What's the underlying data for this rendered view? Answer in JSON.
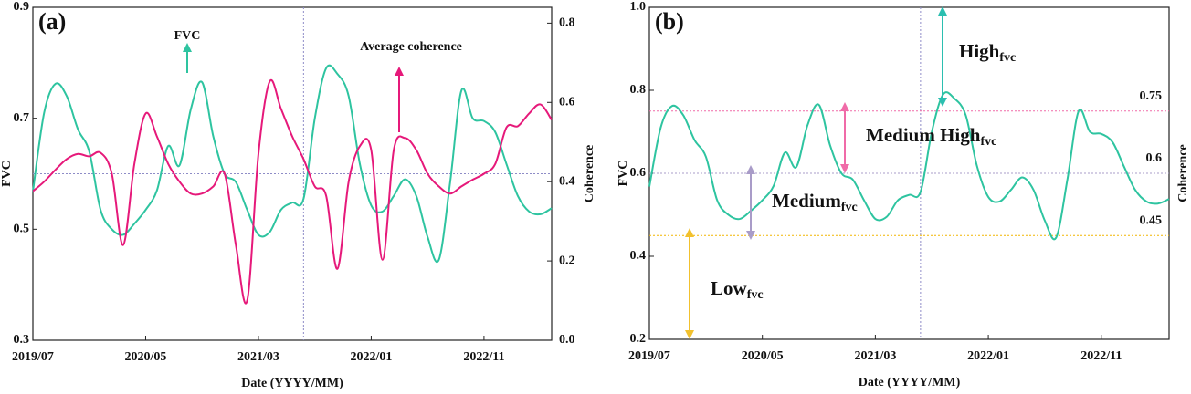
{
  "chart_data": [
    {
      "type": "line",
      "panel_label": "(a)",
      "x": [
        "2019/07",
        "2019/08",
        "2019/09",
        "2019/10",
        "2019/11",
        "2019/12",
        "2020/01",
        "2020/02",
        "2020/03",
        "2020/04",
        "2020/05",
        "2020/06",
        "2020/07",
        "2020/08",
        "2020/09",
        "2020/10",
        "2020/11",
        "2020/12",
        "2021/01",
        "2021/02",
        "2021/03",
        "2021/04",
        "2021/05",
        "2021/06",
        "2021/07",
        "2021/08",
        "2021/09",
        "2021/10",
        "2021/11",
        "2021/12",
        "2022/01",
        "2022/02",
        "2022/03",
        "2022/04",
        "2022/05",
        "2022/06",
        "2022/07",
        "2022/08",
        "2022/09",
        "2022/10",
        "2022/11",
        "2022/12",
        "2023/01",
        "2023/02",
        "2023/03",
        "2023/04",
        "2023/05"
      ],
      "xlim": [
        "2019/07",
        "2023/05"
      ],
      "xticks": [
        "2019/07",
        "2020/05",
        "2021/03",
        "2022/01",
        "2022/11"
      ],
      "xlabel": "Date (YYYY/MM)",
      "ylabel": "FVC",
      "y2label": "Coherence",
      "ylim": [
        0.3,
        0.9
      ],
      "yticks": [
        0.3,
        0.5,
        0.7,
        0.9
      ],
      "y2lim": [
        0,
        0.84
      ],
      "y2ticks": [
        {
          "value": 0,
          "label": "0.0"
        },
        0.2,
        0.4,
        0.6,
        0.8
      ],
      "vline": "2021/07",
      "hline": 0.6,
      "hline_color": "#8e8cc7",
      "series": [
        {
          "name": "FVC",
          "color": "#2ec4a0",
          "values": [
            0.568,
            0.71,
            0.762,
            0.74,
            0.68,
            0.64,
            0.535,
            0.5,
            0.49,
            0.51,
            0.535,
            0.57,
            0.65,
            0.615,
            0.716,
            0.765,
            0.667,
            0.6,
            0.585,
            0.535,
            0.49,
            0.495,
            0.535,
            0.548,
            0.555,
            0.7,
            0.79,
            0.78,
            0.74,
            0.617,
            0.543,
            0.532,
            0.56,
            0.59,
            0.56,
            0.486,
            0.445,
            0.585,
            0.75,
            0.7,
            0.695,
            0.675,
            0.617,
            0.56,
            0.532,
            0.527,
            0.538
          ]
        },
        {
          "name": "Average coherence",
          "color": "#e6197a",
          "axis": "y2",
          "values": [
            0.376,
            0.4,
            0.43,
            0.457,
            0.47,
            0.464,
            0.473,
            0.42,
            0.24,
            0.445,
            0.572,
            0.514,
            0.445,
            0.4,
            0.37,
            0.37,
            0.388,
            0.42,
            0.24,
            0.1,
            0.47,
            0.653,
            0.584,
            0.514,
            0.457,
            0.388,
            0.365,
            0.18,
            0.4,
            0.49,
            0.48,
            0.203,
            0.48,
            0.51,
            0.48,
            0.42,
            0.388,
            0.37,
            0.388,
            0.405,
            0.42,
            0.445,
            0.537,
            0.54,
            0.572,
            0.595,
            0.556
          ]
        }
      ]
    },
    {
      "type": "line",
      "panel_label": "(b)",
      "x": [
        "2019/07",
        "2019/08",
        "2019/09",
        "2019/10",
        "2019/11",
        "2019/12",
        "2020/01",
        "2020/02",
        "2020/03",
        "2020/04",
        "2020/05",
        "2020/06",
        "2020/07",
        "2020/08",
        "2020/09",
        "2020/10",
        "2020/11",
        "2020/12",
        "2021/01",
        "2021/02",
        "2021/03",
        "2021/04",
        "2021/05",
        "2021/06",
        "2021/07",
        "2021/08",
        "2021/09",
        "2021/10",
        "2021/11",
        "2021/12",
        "2022/01",
        "2022/02",
        "2022/03",
        "2022/04",
        "2022/05",
        "2022/06",
        "2022/07",
        "2022/08",
        "2022/09",
        "2022/10",
        "2022/11",
        "2022/12",
        "2023/01",
        "2023/02",
        "2023/03",
        "2023/04",
        "2023/05"
      ],
      "xlim": [
        "2019/07",
        "2023/05"
      ],
      "xticks": [
        "2019/07",
        "2020/05",
        "2021/03",
        "2022/01",
        "2022/11"
      ],
      "xlabel": "Date (YYYY/MM)",
      "ylabel": "FVC",
      "y2label": "Coherence",
      "ylim": [
        0.2,
        1.0
      ],
      "yticks": [
        0.2,
        0.4,
        0.6,
        0.8,
        {
          "value": 1.0,
          "label": "1.0"
        }
      ],
      "vline": "2021/07",
      "series": [
        {
          "color": "#2ec4a0",
          "values": [
            0.568,
            0.71,
            0.762,
            0.74,
            0.68,
            0.64,
            0.535,
            0.5,
            0.49,
            0.51,
            0.535,
            0.57,
            0.65,
            0.615,
            0.716,
            0.765,
            0.667,
            0.6,
            0.585,
            0.535,
            0.49,
            0.495,
            0.535,
            0.548,
            0.555,
            0.7,
            0.79,
            0.78,
            0.74,
            0.617,
            0.543,
            0.532,
            0.56,
            0.59,
            0.56,
            0.486,
            0.445,
            0.585,
            0.75,
            0.7,
            0.695,
            0.675,
            0.617,
            0.56,
            0.532,
            0.527,
            0.538
          ]
        }
      ],
      "thresholds": [
        {
          "value": 0.75,
          "color": "#f06ba8"
        },
        {
          "value": 0.6,
          "color": "#a99cc8"
        },
        {
          "value": 0.45,
          "color": "#f2b600"
        }
      ],
      "zones": [
        {
          "text": "High",
          "sub": "fvc",
          "color": "#2bbfb0"
        },
        {
          "text": "Medium High",
          "sub": "fvc",
          "color": "#f06ba8"
        },
        {
          "text": "Medium",
          "sub": "fvc",
          "color": "#a99cc8"
        },
        {
          "text": "Low",
          "sub": "fvc",
          "color": "#f2c12e"
        }
      ]
    }
  ]
}
